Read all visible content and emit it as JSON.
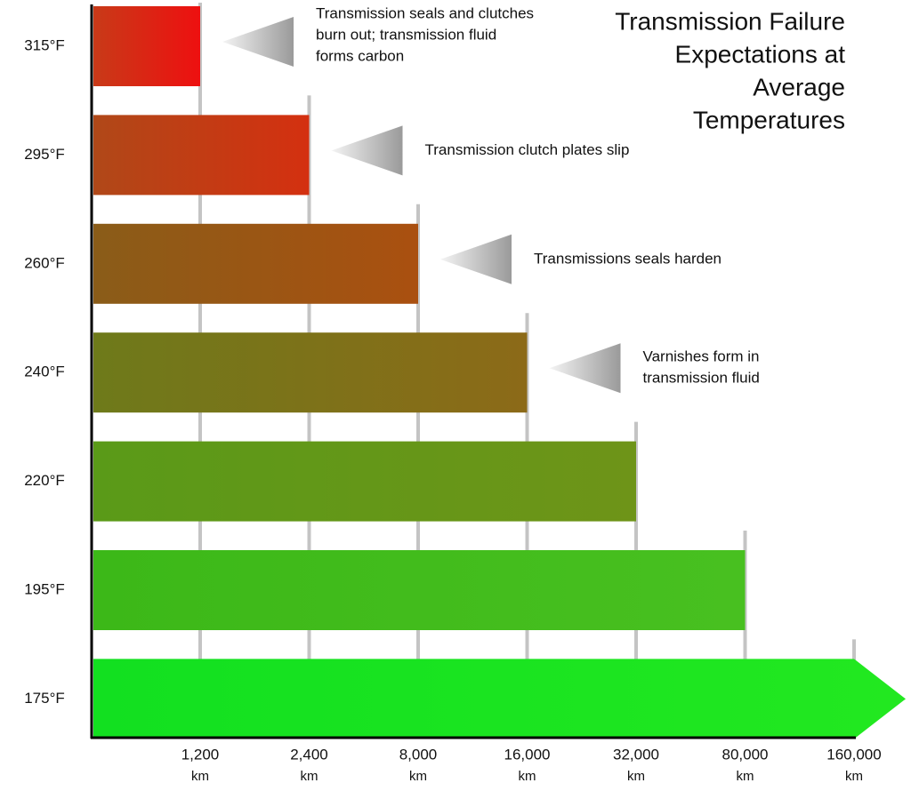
{
  "chart_data": {
    "type": "bar",
    "orientation": "horizontal",
    "title": [
      "Transmission Failure",
      "Expectations at",
      "Average",
      "Temperatures"
    ],
    "categories": [
      "315°F",
      "295°F",
      "260°F",
      "240°F",
      "220°F",
      "195°F",
      "175°F"
    ],
    "values": [
      1200,
      2400,
      8000,
      16000,
      32000,
      80000,
      160000
    ],
    "colors": [
      [
        "#c83a18",
        "#ee1010"
      ],
      [
        "#b04818",
        "#d43010"
      ],
      [
        "#8a5c18",
        "#aa5010"
      ],
      [
        "#6e7a1a",
        "#8c6a18"
      ],
      [
        "#5a9a18",
        "#6e9418"
      ],
      [
        "#3cb818",
        "#48c020"
      ],
      [
        "#12e020",
        "#22e820"
      ]
    ],
    "xticks": [
      {
        "value": 1200,
        "label": "1,200"
      },
      {
        "value": 2400,
        "label": "2,400"
      },
      {
        "value": 8000,
        "label": "8,000"
      },
      {
        "value": 16000,
        "label": "16,000"
      },
      {
        "value": 32000,
        "label": "32,000"
      },
      {
        "value": 80000,
        "label": "80,000"
      },
      {
        "value": 160000,
        "label": "160,000"
      }
    ],
    "x_unit": "km",
    "annotations": [
      [
        "Transmission seals and clutches",
        "burn out; transmission fluid",
        "forms carbon"
      ],
      [
        "Transmission clutch plates slip"
      ],
      [
        "Transmissions seals harden"
      ],
      [
        "Varnishes form in",
        "transmission fluid"
      ]
    ]
  }
}
